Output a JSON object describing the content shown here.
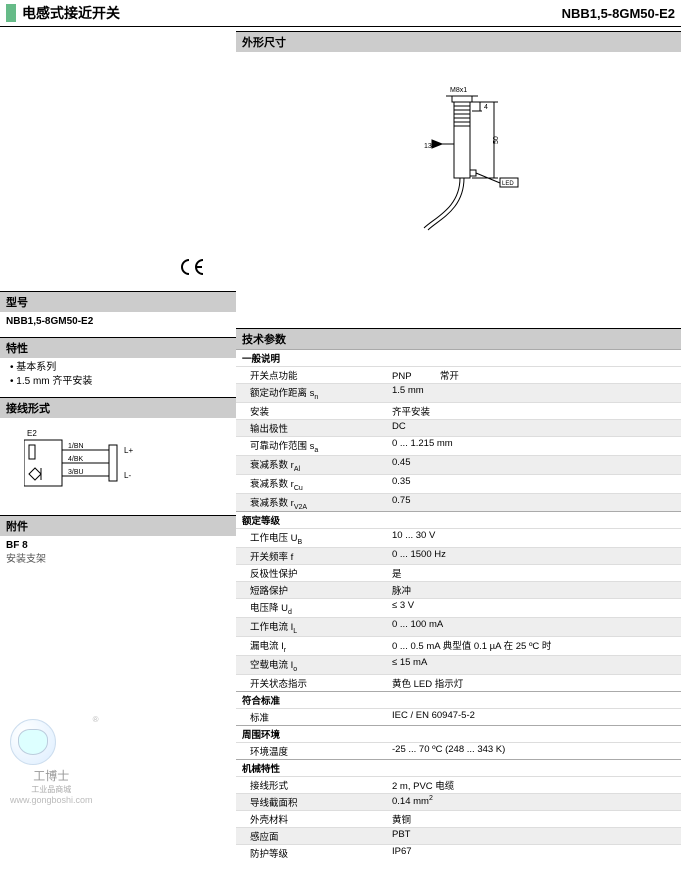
{
  "header": {
    "title": "电感式接近开关",
    "product_code": "NBB1,5-8GM50-E2"
  },
  "left": {
    "ce_mark": "CE",
    "model_head": "型号",
    "model_value": "NBB1,5-8GM50-E2",
    "features_head": "特性",
    "features": [
      "基本系列",
      "1.5 mm 齐平安装"
    ],
    "wiring_head": "接线形式",
    "wiring": {
      "label_e2": "E2",
      "pin1": "1/BN",
      "pin4": "4/BK",
      "pin3": "3/BU",
      "lplus": "L+",
      "lminus": "L-"
    },
    "accessory_head": "附件",
    "accessory_code": "BF 8",
    "accessory_desc": "安装支架"
  },
  "right": {
    "dim_head": "外形尺寸",
    "dim": {
      "thread": "M8x1",
      "d4": "4",
      "d13": "13",
      "d50": "50",
      "led": "LED"
    },
    "tech_head": "技术参数",
    "groups": [
      {
        "head": "一般说明",
        "rows": [
          {
            "a": "开关点功能",
            "b": "PNP　　　常开",
            "alt": false
          },
          {
            "a": "额定动作距离  s<sub>n</sub>",
            "b": "1.5 mm",
            "alt": true
          },
          {
            "a": "安装",
            "b": "齐平安装",
            "alt": false
          },
          {
            "a": "输出极性",
            "b": "DC",
            "alt": true
          },
          {
            "a": "可靠动作范围 s<sub>a</sub>",
            "b": "0 ... 1.215 mm",
            "alt": false
          },
          {
            "a": "衰减系数 r<sub>Al</sub>",
            "b": "0.45",
            "alt": true
          },
          {
            "a": "衰减系数 r<sub>Cu</sub>",
            "b": "0.35",
            "alt": false
          },
          {
            "a": "衰减系数 r<sub>V2A</sub>",
            "b": "0.75",
            "alt": true
          }
        ]
      },
      {
        "head": "额定等级",
        "rows": [
          {
            "a": "工作电压  U<sub>B</sub>",
            "b": "10 ... 30 V",
            "alt": false
          },
          {
            "a": "开关频率 f",
            "b": "0 ... 1500 Hz",
            "alt": true
          },
          {
            "a": "反极性保护",
            "b": "是",
            "alt": false
          },
          {
            "a": "短路保护",
            "b": "脉冲",
            "alt": true
          },
          {
            "a": "电压降  U<sub>d</sub>",
            "b": "≤ 3 V",
            "alt": false
          },
          {
            "a": "工作电流  I<sub>L</sub>",
            "b": "0 ... 100 mA",
            "alt": true
          },
          {
            "a": "漏电流 I<sub>r</sub>",
            "b": "0 ... 0.5 mA 典型值 0.1 µA 在 25 ºC 时",
            "alt": false
          },
          {
            "a": "空载电流  I<sub>o</sub>",
            "b": "≤ 15 mA",
            "alt": true
          },
          {
            "a": "开关状态指示",
            "b": "黄色 LED 指示灯",
            "alt": false
          }
        ]
      },
      {
        "head": "符合标准",
        "rows": [
          {
            "a": "标准",
            "b": "IEC / EN 60947-5-2",
            "alt": false
          }
        ]
      },
      {
        "head": "周围环境",
        "rows": [
          {
            "a": "环境温度",
            "b": "-25 ... 70 ºC (248 ... 343 K)",
            "alt": false
          }
        ]
      },
      {
        "head": "机械特性",
        "rows": [
          {
            "a": "接线形式",
            "b": "2 m, PVC 电缆",
            "alt": false
          },
          {
            "a": "导线截面积",
            "b": "0.14 mm<sup>2</sup>",
            "alt": true
          },
          {
            "a": "外壳材料",
            "b": "黄铜",
            "alt": false
          },
          {
            "a": "感应面",
            "b": "PBT",
            "alt": true
          },
          {
            "a": "防护等级",
            "b": "IP67",
            "alt": false
          }
        ]
      }
    ]
  },
  "watermark": {
    "brand": "工博士",
    "sub": "工业品商城",
    "url": "www.gongboshi.com",
    "reg": "®"
  },
  "colors": {
    "section_bg": "#cccccc",
    "alt_row": "#eeeeee",
    "border": "#000000"
  }
}
